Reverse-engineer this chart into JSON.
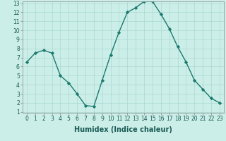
{
  "x": [
    0,
    1,
    2,
    3,
    4,
    5,
    6,
    7,
    8,
    9,
    10,
    11,
    12,
    13,
    14,
    15,
    16,
    17,
    18,
    19,
    20,
    21,
    22,
    23
  ],
  "y": [
    6.5,
    7.5,
    7.8,
    7.5,
    5.0,
    4.2,
    3.0,
    1.7,
    1.6,
    4.5,
    7.3,
    9.8,
    12.0,
    12.5,
    13.2,
    13.2,
    11.8,
    10.2,
    8.2,
    6.5,
    4.5,
    3.5,
    2.5,
    2.0
  ],
  "line_color": "#1a7a6e",
  "marker_color": "#1a7a6e",
  "bg_color": "#cceee8",
  "grid_color": "#aad8d2",
  "xlabel": "Humidex (Indice chaleur)",
  "ylim": [
    1,
    13
  ],
  "xlim": [
    -0.5,
    23.5
  ],
  "yticks": [
    1,
    2,
    3,
    4,
    5,
    6,
    7,
    8,
    9,
    10,
    11,
    12,
    13
  ],
  "xticks": [
    0,
    1,
    2,
    3,
    4,
    5,
    6,
    7,
    8,
    9,
    10,
    11,
    12,
    13,
    14,
    15,
    16,
    17,
    18,
    19,
    20,
    21,
    22,
    23
  ],
  "tick_fontsize": 5.5,
  "xlabel_fontsize": 7.0,
  "linewidth": 1.0,
  "markersize": 2.2
}
